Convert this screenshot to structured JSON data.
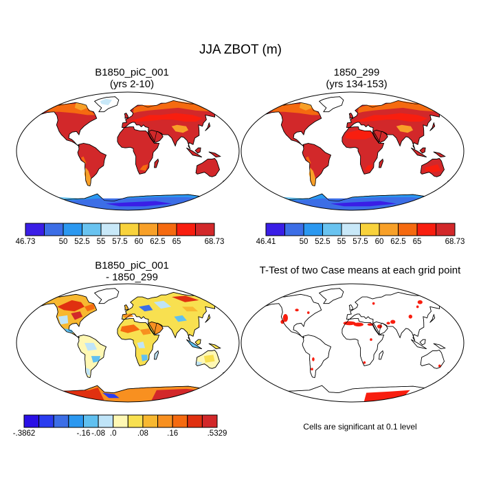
{
  "figure": {
    "title": "JJA ZBOT (m)"
  },
  "panels": [
    {
      "id": "case1",
      "title_line1": "B1850_piC_001",
      "title_line2": "(yrs 2-10)",
      "colorbar": {
        "labels": [
          "46.73",
          "50",
          "52.5",
          "55",
          "57.5",
          "60",
          "62.5",
          "65",
          "68.73"
        ],
        "colors": [
          "#3a1ee6",
          "#3c6ee6",
          "#2b98f0",
          "#69c3f0",
          "#c8e8f8",
          "#f8d23c",
          "#f8a028",
          "#f56a10",
          "#f81e0f",
          "#d2282a"
        ]
      }
    },
    {
      "id": "case2",
      "title_line1": "1850_299",
      "title_line2": "(yrs 134-153)",
      "colorbar": {
        "labels": [
          "46.41",
          "50",
          "52.5",
          "55",
          "57.5",
          "60",
          "62.5",
          "65",
          "68.73"
        ],
        "colors": [
          "#3a1ee6",
          "#3c6ee6",
          "#2b98f0",
          "#69c3f0",
          "#c8e8f8",
          "#f8d23c",
          "#f8a028",
          "#f56a10",
          "#f81e0f",
          "#d2282a"
        ]
      }
    },
    {
      "id": "diff",
      "title_line1": "B1850_piC_001",
      "title_line2": "- 1850_299",
      "colorbar": {
        "labels": [
          "-.3862",
          "-.16",
          "-.08",
          ".0",
          ".08",
          ".16",
          ".5329"
        ],
        "colors": [
          "#2a10e6",
          "#2a3cf0",
          "#3c6ee6",
          "#2b98f0",
          "#60c0f0",
          "#bfe4f8",
          "#fff8b4",
          "#f8e050",
          "#f8b830",
          "#f89020",
          "#f56a10",
          "#e03010",
          "#d2282a"
        ]
      }
    },
    {
      "id": "ttest",
      "title_line1": "T-Test of two Case means at each grid point",
      "title_line2": "",
      "note": "Cells are significant at 0.1 level"
    }
  ]
}
